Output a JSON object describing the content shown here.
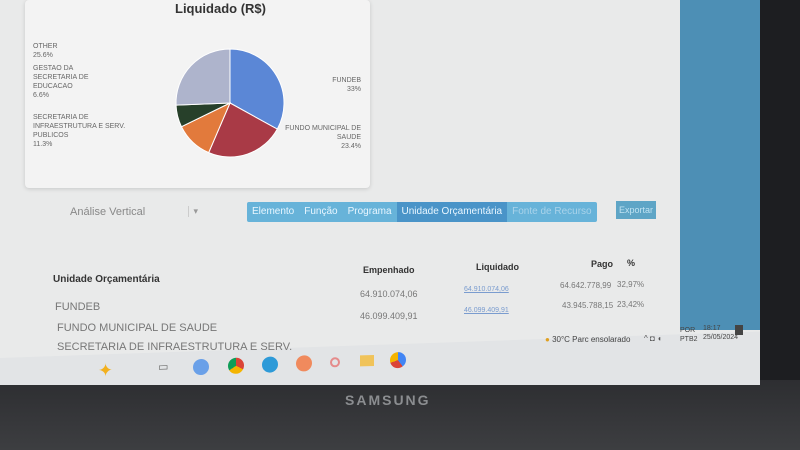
{
  "chart_card": {
    "title": "Liquidado (R$)"
  },
  "chart_data": {
    "type": "pie",
    "title": "Liquidado (R$)",
    "slices": [
      {
        "label": "FUNDEB",
        "value": 33,
        "display": "33%",
        "color": "#5b87d6"
      },
      {
        "label": "FUNDO MUNICIPAL DE SAUDE",
        "value": 23.4,
        "display": "23.4%",
        "color": "#a93a46"
      },
      {
        "label": "SECRETARIA DE INFRAESTRUTURA E SERV. PUBLICOS",
        "value": 11.3,
        "display": "11.3%",
        "color": "#e27a3c"
      },
      {
        "label": "GESTAO DA SECRETARIA DE EDUCACAO",
        "value": 6.6,
        "display": "6.6%",
        "color": "#27402a"
      },
      {
        "label": "Other",
        "value": 25.6,
        "display": "25.6%",
        "color": "#aeb4cc"
      }
    ]
  },
  "controls": {
    "analysis_select": "Análise Vertical",
    "tabs": [
      "Elemento",
      "Função",
      "Programa",
      "Unidade Orçamentária",
      "Fonte de Recurso"
    ],
    "active_tab": 3,
    "export_label": "Exportar"
  },
  "table": {
    "headers": {
      "name": "Unidade Orçamentária",
      "empenhado": "Empenhado",
      "liquidado": "Liquidado",
      "pago": "Pago",
      "pct": "%"
    },
    "rows": [
      {
        "name": "FUNDEB",
        "empenhado": "64.910.074,06",
        "liquidado": "64.910.074,06",
        "pago": "64.642.778,99",
        "pct": "32,97%"
      },
      {
        "name": "FUNDO MUNICIPAL DE SAUDE",
        "empenhado": "46.099.409,91",
        "liquidado": "46.099.409,91",
        "pago": "43.945.788,15",
        "pct": "23,42%"
      },
      {
        "name": "SECRETARIA DE INFRAESTRUTURA E SERV."
      }
    ]
  },
  "taskbar": {
    "weather": "30°C  Parc ensolarado",
    "lang": "POR",
    "layout": "PTB2",
    "time": "18:17",
    "date": "25/05/2024"
  },
  "bezel": {
    "brand": "SAMSUNG"
  }
}
